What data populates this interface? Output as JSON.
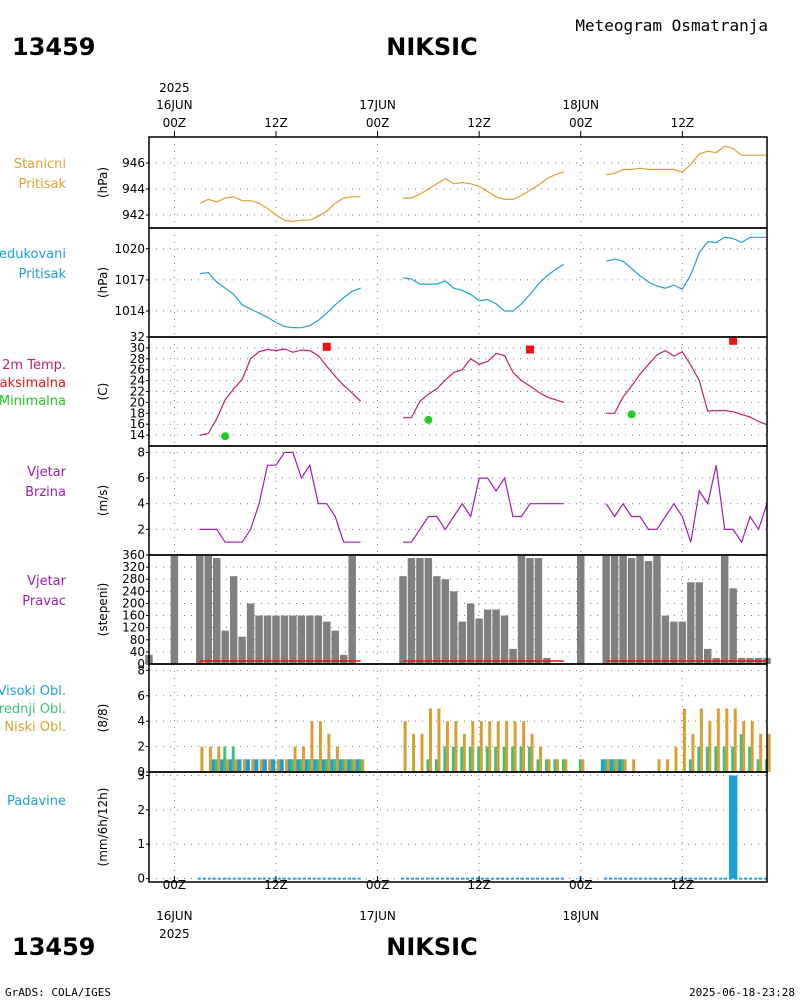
{
  "header": {
    "station_id": "13459",
    "station_name": "NIKSIC",
    "title": "Meteogram Osmatranja"
  },
  "footer": {
    "station_id": "13459",
    "station_name": "NIKSIC",
    "credit": "GrADS: COLA/IGES",
    "timestamp": "2025-06-18-23:28"
  },
  "colors": {
    "pressure": "#e0a030",
    "reduced": "#1ca0d8",
    "temp": "#c0206a",
    "tmax": "#ee1111",
    "tmin": "#22cc22",
    "wind": "#9a20b0",
    "bars": "#808080",
    "high_cloud": "#1ca0d8",
    "mid_cloud": "#3dbf80",
    "low_cloud": "#d8a030",
    "precip": "#1ca0d8"
  },
  "chart_data": [
    {
      "id": "time_axis",
      "type": "table",
      "year_label": "2025",
      "top_ticks": [
        {
          "hour": 0,
          "label": "00Z",
          "date": "16JUN"
        },
        {
          "hour": 12,
          "label": "12Z"
        },
        {
          "hour": 24,
          "label": "00Z",
          "date": "17JUN"
        },
        {
          "hour": 36,
          "label": "12Z"
        },
        {
          "hour": 48,
          "label": "00Z",
          "date": "18JUN"
        },
        {
          "hour": 60,
          "label": "12Z"
        }
      ],
      "xlim": [
        -3,
        70
      ]
    },
    {
      "id": "station_pressure",
      "type": "line",
      "label": [
        "Stanicni",
        "Pritisak"
      ],
      "ylabel": "(hPa)",
      "ylim": [
        941,
        948
      ],
      "yticks": [
        942,
        944,
        946
      ],
      "segments": [
        {
          "x": [
            3,
            4,
            5,
            6,
            7,
            8,
            9,
            10,
            11,
            12,
            13,
            14,
            15,
            16,
            17,
            18,
            19,
            20,
            21,
            22
          ],
          "y": [
            942.9,
            943.2,
            943.0,
            943.3,
            943.4,
            943.1,
            943.1,
            942.9,
            942.5,
            942.0,
            941.6,
            941.5,
            941.6,
            941.6,
            941.9,
            942.3,
            942.9,
            943.3,
            943.4,
            943.4
          ]
        },
        {
          "x": [
            27,
            28,
            29,
            30,
            31,
            32,
            33,
            34,
            35,
            36,
            37,
            38,
            39,
            40,
            41,
            42,
            43,
            44,
            45,
            46
          ],
          "y": [
            943.3,
            943.3,
            943.6,
            944.0,
            944.4,
            944.8,
            944.4,
            944.5,
            944.4,
            944.2,
            943.8,
            943.4,
            943.2,
            943.2,
            943.5,
            943.9,
            944.3,
            944.8,
            945.1,
            945.3
          ]
        },
        {
          "x": [
            51,
            52,
            53,
            54,
            55,
            56,
            57,
            58,
            59,
            60,
            61,
            62,
            63,
            64,
            65,
            66,
            67,
            68,
            69,
            70
          ],
          "y": [
            945.1,
            945.2,
            945.5,
            945.5,
            945.6,
            945.5,
            945.5,
            945.5,
            945.5,
            945.3,
            945.9,
            946.7,
            946.9,
            946.8,
            947.3,
            947.1,
            946.6,
            946.6,
            946.6,
            946.6
          ]
        }
      ]
    },
    {
      "id": "reduced_pressure",
      "type": "line",
      "label": [
        "Redukovani",
        "Pritisak"
      ],
      "ylabel": "(hPa)",
      "ylim": [
        1011.5,
        1022
      ],
      "yticks": [
        1014,
        1017,
        1020
      ],
      "segments": [
        {
          "x": [
            3,
            4,
            5,
            6,
            7,
            8,
            9,
            10,
            11,
            12,
            13,
            14,
            15,
            16,
            17,
            18,
            19,
            20,
            21,
            22
          ],
          "y": [
            1017.6,
            1017.7,
            1016.8,
            1016.2,
            1015.6,
            1014.6,
            1014.2,
            1013.8,
            1013.4,
            1012.9,
            1012.5,
            1012.4,
            1012.4,
            1012.6,
            1013.1,
            1013.8,
            1014.6,
            1015.3,
            1015.9,
            1016.2
          ]
        },
        {
          "x": [
            27,
            28,
            29,
            30,
            31,
            32,
            33,
            34,
            35,
            36,
            37,
            38,
            39,
            40,
            41,
            42,
            43,
            44,
            45,
            46
          ],
          "y": [
            1017.2,
            1017.1,
            1016.6,
            1016.6,
            1016.6,
            1016.9,
            1016.2,
            1016.0,
            1015.6,
            1015.0,
            1015.1,
            1014.7,
            1014.0,
            1014.0,
            1014.7,
            1015.6,
            1016.6,
            1017.4,
            1018.0,
            1018.5
          ]
        },
        {
          "x": [
            51,
            52,
            53,
            54,
            55,
            56,
            57,
            58,
            59,
            60,
            61,
            62,
            63,
            64,
            65,
            66,
            67,
            68,
            69,
            70
          ],
          "y": [
            1018.8,
            1019.0,
            1018.8,
            1018.1,
            1017.4,
            1016.8,
            1016.4,
            1016.2,
            1016.5,
            1016.1,
            1017.5,
            1019.6,
            1020.7,
            1020.6,
            1021.1,
            1021.0,
            1020.6,
            1021.1,
            1021.1,
            1021.1
          ]
        }
      ]
    },
    {
      "id": "temperature",
      "type": "line",
      "label": [
        "2m Temp.",
        "Maksimalna",
        "Minimalna"
      ],
      "ylabel": "(C)",
      "ylim": [
        12,
        32
      ],
      "yticks": [
        14,
        16,
        18,
        20,
        22,
        24,
        26,
        28,
        30,
        32
      ],
      "segments": [
        {
          "x": [
            3,
            4,
            5,
            6,
            7,
            8,
            9,
            10,
            11,
            12,
            13,
            14,
            15,
            16,
            17,
            18,
            19,
            20,
            21,
            22
          ],
          "y": [
            14.0,
            14.3,
            17.0,
            20.5,
            22.5,
            24.2,
            28.0,
            29.3,
            29.7,
            29.5,
            29.8,
            29.2,
            29.6,
            29.5,
            28.6,
            26.6,
            24.8,
            23.1,
            21.7,
            20.2
          ]
        },
        {
          "x": [
            27,
            28,
            29,
            30,
            31,
            32,
            33,
            34,
            35,
            36,
            37,
            38,
            39,
            40,
            41,
            42,
            43,
            44,
            45,
            46
          ],
          "y": [
            17.2,
            17.2,
            20.2,
            21.5,
            22.5,
            24.1,
            25.5,
            26.0,
            28.0,
            27.0,
            27.5,
            29.0,
            28.6,
            25.5,
            24.0,
            23.0,
            21.9,
            21.0,
            20.5,
            20.0
          ]
        },
        {
          "x": [
            51,
            52,
            53,
            54,
            55,
            56,
            57,
            58,
            59,
            60,
            61,
            62,
            63,
            64,
            65,
            66,
            67,
            68,
            69,
            70
          ],
          "y": [
            18.0,
            18.0,
            21.0,
            23.0,
            25.2,
            27.0,
            28.7,
            29.5,
            28.5,
            29.3,
            26.8,
            24.0,
            18.4,
            18.5,
            18.5,
            18.3,
            17.8,
            17.3,
            16.5,
            15.9
          ]
        }
      ],
      "tmax": [
        {
          "x": 18,
          "y": 30.2
        },
        {
          "x": 42,
          "y": 29.7
        },
        {
          "x": 66,
          "y": 31.3
        }
      ],
      "tmin": [
        {
          "x": 6,
          "y": 13.8
        },
        {
          "x": 30,
          "y": 16.8
        },
        {
          "x": 54,
          "y": 17.8
        }
      ]
    },
    {
      "id": "wind_speed",
      "type": "line",
      "label": [
        "Vjetar",
        "Brzina"
      ],
      "ylabel": "(m/s)",
      "ylim": [
        0,
        8.5
      ],
      "yticks": [
        2,
        4,
        6,
        8
      ],
      "segments": [
        {
          "x": [
            3,
            4,
            5,
            6,
            7,
            8,
            9,
            10,
            11,
            12,
            13,
            14,
            15,
            16,
            17,
            18,
            19,
            20,
            21,
            22
          ],
          "y": [
            2,
            2,
            2,
            1,
            1,
            1,
            2,
            4,
            7,
            7,
            8,
            8,
            6,
            7,
            4,
            4,
            3,
            1,
            1,
            1
          ]
        },
        {
          "x": [
            27,
            28,
            29,
            30,
            31,
            32,
            33,
            34,
            35,
            36,
            37,
            38,
            39,
            40,
            41,
            42,
            43,
            44,
            45,
            46
          ],
          "y": [
            1,
            1,
            2,
            3,
            3,
            2,
            3,
            4,
            3,
            6,
            6,
            5,
            6,
            3,
            3,
            4,
            4,
            4,
            4,
            4
          ]
        },
        {
          "x": [
            51,
            52,
            53,
            54,
            55,
            56,
            57,
            58,
            59,
            60,
            61,
            62,
            63,
            64,
            65,
            66,
            67,
            68,
            69,
            70
          ],
          "y": [
            4,
            3,
            4,
            3,
            3,
            2,
            2,
            3,
            4,
            3,
            1,
            5,
            4,
            7,
            2,
            2,
            1,
            3,
            2,
            4
          ]
        }
      ]
    },
    {
      "id": "wind_direction",
      "type": "bar",
      "label": [
        "Vjetar",
        "Pravac"
      ],
      "ylabel": "(stepeni)",
      "ylim": [
        0,
        360
      ],
      "yticks": [
        0,
        40,
        80,
        120,
        160,
        200,
        240,
        280,
        320,
        360
      ],
      "x": [
        -3,
        0,
        3,
        4,
        5,
        6,
        7,
        8,
        9,
        10,
        11,
        12,
        13,
        14,
        15,
        16,
        17,
        18,
        19,
        20,
        21,
        22,
        27,
        28,
        29,
        30,
        31,
        32,
        33,
        34,
        35,
        36,
        37,
        38,
        39,
        40,
        41,
        42,
        43,
        44,
        45,
        46,
        48,
        51,
        52,
        53,
        54,
        55,
        56,
        57,
        58,
        59,
        60,
        61,
        62,
        63,
        64,
        65,
        66,
        67,
        68,
        69,
        70
      ],
      "values": [
        30,
        360,
        360,
        360,
        350,
        110,
        290,
        90,
        200,
        160,
        160,
        160,
        160,
        160,
        160,
        160,
        160,
        140,
        110,
        30,
        360,
        0,
        290,
        350,
        350,
        350,
        290,
        280,
        240,
        140,
        200,
        150,
        180,
        180,
        160,
        50,
        360,
        350,
        350,
        20,
        0,
        0,
        360,
        360,
        360,
        360,
        350,
        370,
        340,
        360,
        160,
        140,
        140,
        270,
        270,
        50,
        20,
        360,
        250,
        20,
        20,
        20,
        20
      ],
      "calm_color": "#ee1111"
    },
    {
      "id": "clouds",
      "type": "bar",
      "label": [
        "Visoki Obl.",
        "Srednji Obl.",
        "Niski Obl."
      ],
      "ylabel": "(8/8)",
      "ylim": [
        0,
        8.5
      ],
      "yticks": [
        0,
        2,
        4,
        6,
        8
      ],
      "series": [
        {
          "name": "Visoki Obl.",
          "x": [
            5,
            6,
            7,
            8,
            9,
            10,
            11,
            12,
            13,
            14,
            15,
            16,
            17,
            18,
            19,
            20,
            21,
            22,
            51,
            52,
            53
          ],
          "values": [
            1,
            1,
            1,
            1,
            1,
            1,
            1,
            1,
            1,
            1,
            1,
            1,
            1,
            1,
            1,
            1,
            1,
            1,
            1,
            1,
            1
          ]
        },
        {
          "name": "Srednji Obl.",
          "x": [
            5,
            6,
            7,
            14,
            15,
            16,
            17,
            18,
            19,
            20,
            21,
            22,
            30,
            31,
            32,
            33,
            34,
            35,
            36,
            37,
            38,
            39,
            40,
            41,
            42,
            43,
            44,
            45,
            46,
            48,
            51,
            52,
            53,
            56,
            57,
            58,
            59,
            60,
            61,
            62,
            63,
            64,
            65,
            66,
            67,
            68,
            69,
            70
          ],
          "values": [
            1,
            2,
            2,
            1,
            1,
            1,
            1,
            1,
            1,
            1,
            1,
            1,
            1,
            1,
            2,
            2,
            2,
            2,
            2,
            2,
            2,
            2,
            2,
            2,
            2,
            1,
            1,
            1,
            1,
            1,
            1,
            1,
            1,
            0,
            0,
            0,
            0,
            0,
            1,
            2,
            2,
            2,
            2,
            2,
            3,
            2,
            1,
            1
          ]
        },
        {
          "name": "Niski Obl.",
          "x": [
            3,
            4,
            5,
            6,
            7,
            8,
            9,
            10,
            11,
            12,
            13,
            14,
            15,
            16,
            17,
            18,
            19,
            20,
            21,
            22,
            27,
            28,
            29,
            30,
            31,
            32,
            33,
            34,
            35,
            36,
            37,
            38,
            39,
            40,
            41,
            42,
            43,
            44,
            45,
            46,
            48,
            51,
            52,
            53,
            54,
            55,
            56,
            57,
            58,
            59,
            60,
            61,
            62,
            63,
            64,
            65,
            66,
            67,
            68,
            69,
            70
          ],
          "values": [
            2,
            2,
            2,
            1,
            1,
            1,
            1,
            1,
            1,
            1,
            1,
            2,
            2,
            4,
            4,
            3,
            2,
            1,
            1,
            1,
            4,
            3,
            3,
            5,
            5,
            4,
            4,
            3,
            4,
            4,
            4,
            4,
            4,
            4,
            4,
            3,
            2,
            1,
            1,
            1,
            1,
            1,
            1,
            1,
            1,
            0,
            0,
            1,
            1,
            2,
            5,
            3,
            5,
            4,
            5,
            5,
            5,
            4,
            4,
            3,
            3
          ]
        }
      ]
    },
    {
      "id": "precipitation",
      "type": "bar",
      "label": [
        "Padavine"
      ],
      "ylabel": "(mm/6h/12h)",
      "ylim": [
        -0.1,
        3.1
      ],
      "yticks": [
        0,
        1,
        2,
        3
      ],
      "x": [
        66
      ],
      "values": [
        3.0
      ],
      "baseline_segments": [
        [
          3,
          22
        ],
        [
          27,
          46
        ],
        [
          48,
          48
        ],
        [
          51,
          70
        ]
      ]
    }
  ]
}
